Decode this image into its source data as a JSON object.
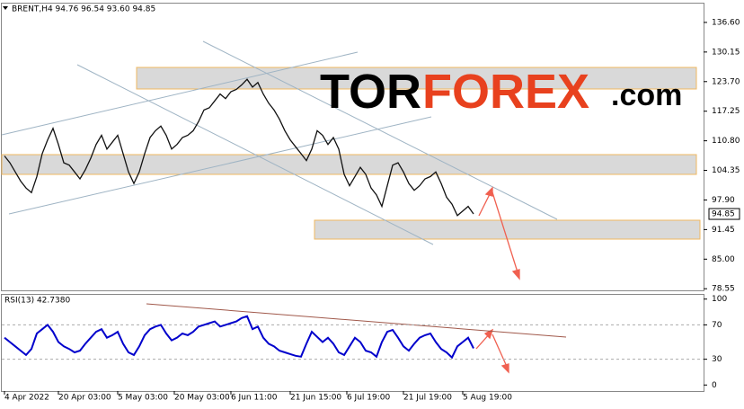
{
  "watermark": {
    "brand_main": "TOR",
    "brand_accent": "FOREX",
    "brand_suffix": ".com"
  },
  "chart_data": [
    {
      "type": "line",
      "title": "BRENT,H4  94.76 96.54 93.60 94.85",
      "color": "#111111",
      "xlim": [
        -0.83,
        129.67
      ],
      "values": [
        107.5,
        106,
        104,
        102,
        100.5,
        99.5,
        103,
        108,
        111,
        113.5,
        110,
        106,
        105.5,
        104,
        102.5,
        104.5,
        107,
        110,
        112,
        109,
        110.5,
        112,
        108,
        104,
        101.5,
        104,
        108,
        111.5,
        113,
        114,
        112,
        109,
        110,
        111.5,
        112,
        113,
        115,
        117.5,
        118,
        119.5,
        121,
        120,
        121.5,
        122,
        123,
        124.2,
        122.5,
        123.5,
        121,
        119,
        117.5,
        115.5,
        113,
        111,
        109.5,
        108,
        106.5,
        109,
        113,
        112,
        110,
        111.5,
        109,
        103.5,
        101,
        103,
        105,
        103.5,
        100.5,
        99,
        96.5,
        101,
        105.5,
        106,
        104,
        101.5,
        100,
        101,
        102.5,
        103,
        104,
        101.5,
        98.5,
        97,
        94.5,
        95.5,
        96.5,
        94.85
      ],
      "ylim": [
        78.2,
        140.9
      ],
      "yticks": [
        {
          "value": 136.6,
          "label": "136.60"
        },
        130.15,
        {
          "value": 123.7,
          "label": "123.70"
        },
        117.25,
        {
          "value": 110.8,
          "label": "110.80"
        },
        104.35,
        {
          "value": 97.9,
          "label": "97.90"
        },
        91.45,
        {
          "value": 85,
          "label": "85.00"
        },
        78.55
      ]
    },
    {
      "type": "line",
      "title": "RSI(13) 42.7380",
      "color": "#0000cc",
      "xlim": [
        -0.83,
        129.67
      ],
      "values": [
        55,
        50,
        45,
        40,
        35,
        42,
        60,
        65,
        70,
        62,
        50,
        45,
        42,
        38,
        40,
        48,
        55,
        62,
        65,
        55,
        58,
        62,
        48,
        38,
        35,
        45,
        58,
        65,
        68,
        70,
        60,
        52,
        55,
        60,
        58,
        62,
        68,
        70,
        72,
        74,
        68,
        70,
        72,
        74,
        78,
        80,
        65,
        68,
        55,
        48,
        45,
        40,
        38,
        36,
        34,
        33,
        48,
        62,
        56,
        50,
        55,
        48,
        38,
        35,
        45,
        55,
        50,
        40,
        38,
        33,
        50,
        62,
        64,
        55,
        45,
        40,
        48,
        55,
        58,
        60,
        50,
        42,
        38,
        32,
        45,
        50,
        55,
        42.738
      ],
      "ylim": [
        -7,
        106
      ],
      "yticks": [
        100,
        70,
        30,
        0
      ],
      "levels": [
        70,
        30
      ],
      "xticks": [
        {
          "value": 0,
          "label": "4 Apr 2022"
        },
        {
          "value": 10,
          "label": "20 Apr 03:00"
        },
        {
          "value": 21,
          "label": "5 May 03:00"
        },
        {
          "value": 31.5,
          "label": "20 May 03:00"
        },
        {
          "value": 42,
          "label": "6 Jun 11:00"
        },
        {
          "value": 53,
          "label": "21 Jun 15:00"
        },
        {
          "value": 63.5,
          "label": "6 Jul 19:00"
        },
        {
          "value": 74,
          "label": "21 Jul 19:00"
        },
        {
          "value": 85,
          "label": "5 Aug 19:00"
        }
      ]
    }
  ]
}
